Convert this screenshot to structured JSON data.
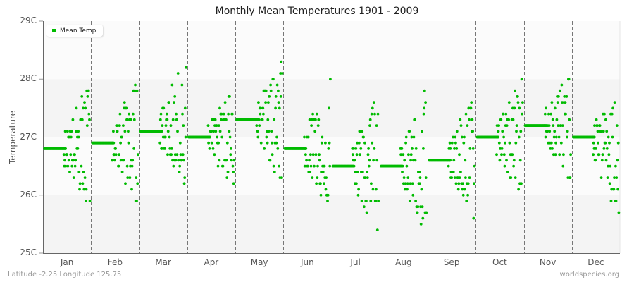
{
  "chart_data": {
    "type": "scatter",
    "title": "Monthly Mean Temperatures 1901 - 2009",
    "xlabel": "",
    "ylabel": "Temperature",
    "ylim": [
      25,
      29
    ],
    "yticks": [
      "25C",
      "26C",
      "27C",
      "28C",
      "29C"
    ],
    "categories": [
      "Jan",
      "Feb",
      "Mar",
      "Apr",
      "May",
      "Jun",
      "Jul",
      "Aug",
      "Sep",
      "Oct",
      "Nov",
      "Dec"
    ],
    "legend": {
      "entries": [
        "Mean Temp"
      ],
      "position": "top-left"
    },
    "grid": {
      "horizontal_bands": true,
      "vertical_dashed_month_separators": true
    },
    "series": [
      {
        "name": "Mean Temp",
        "color": "#00bb00",
        "monthly_mean": [
          26.8,
          26.9,
          27.1,
          27.0,
          27.3,
          26.8,
          26.5,
          26.5,
          26.6,
          27.0,
          27.2,
          27.0
        ],
        "monthly_min": [
          25.7,
          25.8,
          26.1,
          26.1,
          26.1,
          25.7,
          25.2,
          25.3,
          25.5,
          25.8,
          26.2,
          25.5
        ],
        "monthly_max": [
          28.0,
          28.0,
          28.4,
          27.9,
          28.4,
          28.2,
          27.9,
          27.9,
          27.8,
          28.1,
          28.2,
          27.8
        ],
        "years": [
          1901,
          2009
        ]
      }
    ]
  },
  "footer": {
    "location": "Latitude -2.25 Longitude 125.75",
    "source": "worldspecies.org"
  }
}
